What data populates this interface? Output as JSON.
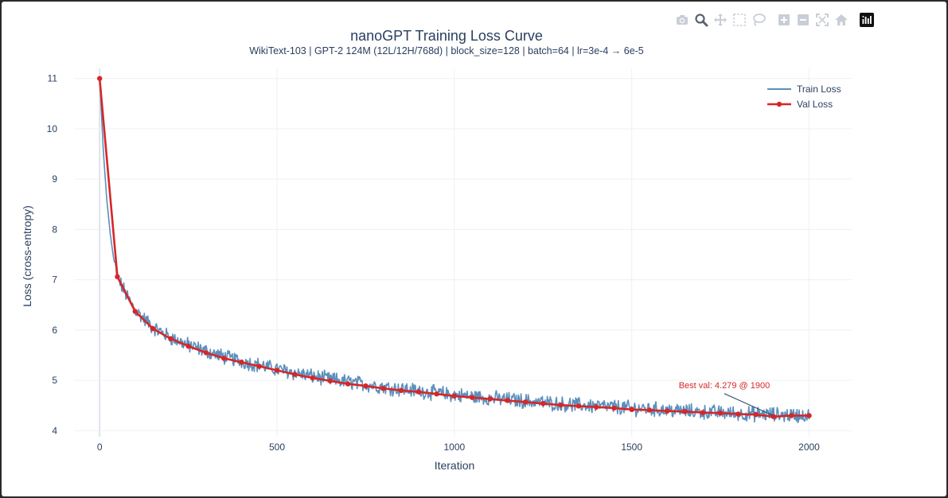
{
  "toolbar": {
    "icons": [
      "camera-icon",
      "zoom-icon",
      "pan-icon",
      "box-select-icon",
      "lasso-select-icon",
      "zoom-in-icon",
      "zoom-out-icon",
      "autoscale-icon",
      "reset-axes-icon",
      "plotly-logo-icon"
    ],
    "icon_color": "#c9ced6",
    "active_icon_color": "#5a6370"
  },
  "chart_data": {
    "type": "line",
    "title": "nanoGPT Training Loss Curve",
    "subtitle": "WikiText-103 | GPT-2 124M (12L/12H/768d) | block_size=128 | batch=64 | lr=3e-4 → 6e-5",
    "xlabel": "Iteration",
    "ylabel": "Loss (cross-entropy)",
    "xlim": [
      -70,
      2120
    ],
    "ylim": [
      3.88,
      11.2
    ],
    "xticks": [
      0,
      500,
      1000,
      1500,
      2000
    ],
    "yticks": [
      4,
      5,
      6,
      7,
      8,
      9,
      10,
      11
    ],
    "grid": true,
    "legend_position": "top-right",
    "series": [
      {
        "name": "Train Loss",
        "color": "#5b8fbd",
        "mode": "lines",
        "x": [
          0,
          10,
          20,
          30,
          40,
          50,
          75,
          100,
          150,
          200,
          250,
          300,
          350,
          400,
          450,
          500,
          550,
          600,
          650,
          700,
          750,
          800,
          850,
          900,
          950,
          1000,
          1050,
          1100,
          1150,
          1200,
          1250,
          1300,
          1350,
          1400,
          1450,
          1500,
          1550,
          1600,
          1650,
          1700,
          1750,
          1800,
          1850,
          1900,
          1950,
          2000
        ],
        "values": [
          11.0,
          9.6,
          8.6,
          7.9,
          7.4,
          7.05,
          6.7,
          6.4,
          6.05,
          5.85,
          5.7,
          5.58,
          5.47,
          5.38,
          5.3,
          5.22,
          5.15,
          5.08,
          5.02,
          4.97,
          4.92,
          4.87,
          4.83,
          4.79,
          4.75,
          4.71,
          4.68,
          4.65,
          4.62,
          4.59,
          4.56,
          4.53,
          4.51,
          4.49,
          4.47,
          4.45,
          4.43,
          4.41,
          4.39,
          4.37,
          4.36,
          4.34,
          4.33,
          4.32,
          4.31,
          4.3
        ]
      },
      {
        "name": "Val Loss",
        "color": "#d62728",
        "mode": "lines+markers",
        "x": [
          0,
          50,
          100,
          150,
          200,
          250,
          300,
          350,
          400,
          450,
          500,
          550,
          600,
          650,
          700,
          750,
          800,
          850,
          900,
          950,
          1000,
          1050,
          1100,
          1150,
          1200,
          1250,
          1300,
          1350,
          1400,
          1450,
          1500,
          1550,
          1600,
          1650,
          1700,
          1750,
          1800,
          1850,
          1900,
          1950,
          2000
        ],
        "values": [
          11.0,
          7.06,
          6.37,
          6.03,
          5.83,
          5.68,
          5.55,
          5.44,
          5.36,
          5.28,
          5.2,
          5.12,
          5.05,
          4.99,
          4.93,
          4.89,
          4.84,
          4.8,
          4.77,
          4.73,
          4.69,
          4.66,
          4.63,
          4.6,
          4.57,
          4.54,
          4.51,
          4.49,
          4.47,
          4.45,
          4.42,
          4.41,
          4.39,
          4.38,
          4.36,
          4.35,
          4.33,
          4.32,
          4.28,
          4.3,
          4.3
        ]
      }
    ],
    "annotations": [
      {
        "text": "Best val: 4.279 @ 1900",
        "x": 1900,
        "y": 4.279,
        "color": "#d62728"
      }
    ]
  }
}
